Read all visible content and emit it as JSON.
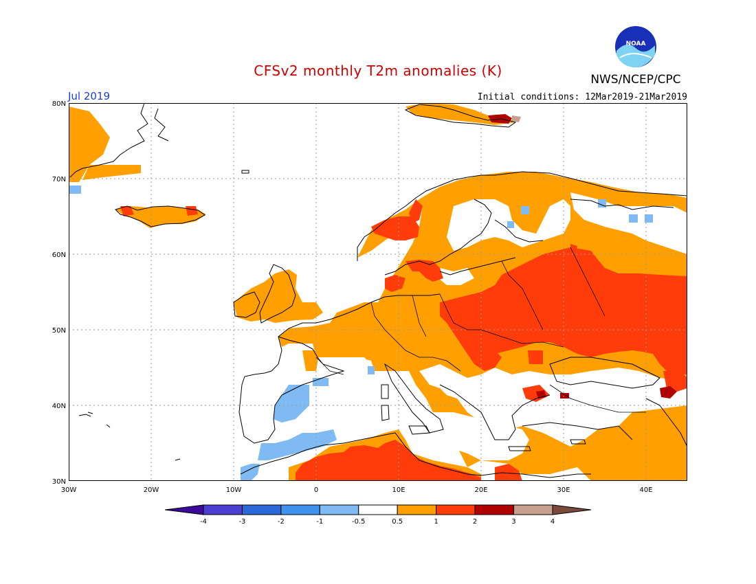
{
  "header": {
    "title": "CFSv2 monthly T2m anomalies (K)",
    "month": "Jul 2019",
    "initial_conditions": "Initial conditions: 12Mar2019-21Mar2019",
    "agency": "NWS/NCEP/CPC",
    "logo_text": "NOAA"
  },
  "map": {
    "lat_labels": [
      "30N",
      "40N",
      "50N",
      "60N",
      "70N",
      "80N"
    ],
    "lon_labels": [
      "30W",
      "20W",
      "10W",
      "0",
      "10E",
      "20E",
      "30E",
      "40E"
    ]
  },
  "colorbar": {
    "labels": [
      "-4",
      "-3",
      "-2",
      "-1",
      "-0.5",
      "0.5",
      "1",
      "2",
      "3",
      "4"
    ],
    "colors": [
      "#3b0a9a",
      "#4a3fd0",
      "#2a6ad8",
      "#3f93ee",
      "#7fbaf2",
      "#ffffff",
      "#ffa000",
      "#ff3c0a",
      "#b00000",
      "#c8a090",
      "#7a4a3a"
    ]
  },
  "colors": {
    "title": "#d00000",
    "month": "#1a3fd6",
    "coast": "#000000",
    "grid": "#9a9a9a"
  }
}
